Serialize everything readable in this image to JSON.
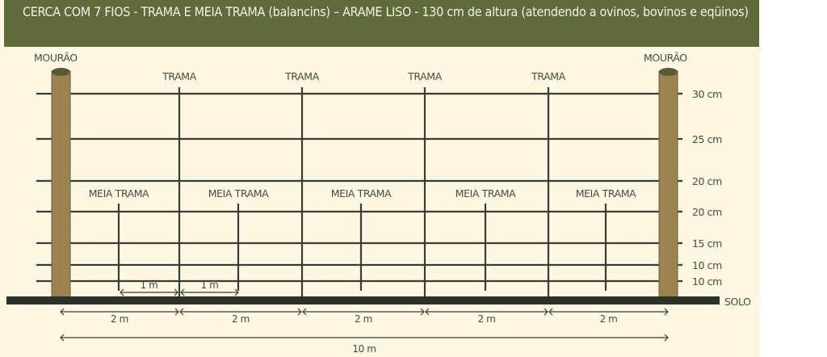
{
  "title": "CERCA COM 7 FIOS - TRAMA E MEIA TRAMA (balancins) – ARAME LISO - 130 cm de altura (atendendo a ovinos, bovinos e eqüinos)",
  "labels": {
    "post_left": "MOURÃO",
    "post_right": "MOURÃO",
    "trama": "TRAMA",
    "meia_trama": "MEIA TRAMA",
    "ground": "SOLO"
  },
  "wire_spacings": [
    "30 cm",
    "25 cm",
    "20 cm",
    "20 cm",
    "15 cm",
    "10 cm",
    "10 cm"
  ],
  "dimensions": {
    "half_span": "1 m",
    "span": "2 m",
    "total": "10 m"
  },
  "colors": {
    "header": "#5f6b3b",
    "background": "#fdf7e3",
    "post": "#9a8350",
    "wire": "#3a3d33",
    "ground": "#2e302a"
  }
}
